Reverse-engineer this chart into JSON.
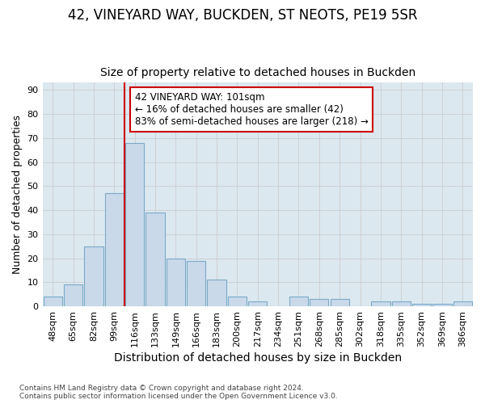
{
  "title1": "42, VINEYARD WAY, BUCKDEN, ST NEOTS, PE19 5SR",
  "title2": "Size of property relative to detached houses in Buckden",
  "xlabel": "Distribution of detached houses by size in Buckden",
  "ylabel": "Number of detached properties",
  "footnote": "Contains HM Land Registry data © Crown copyright and database right 2024.\nContains public sector information licensed under the Open Government Licence v3.0.",
  "bar_labels": [
    "48sqm",
    "65sqm",
    "82sqm",
    "99sqm",
    "116sqm",
    "133sqm",
    "149sqm",
    "166sqm",
    "183sqm",
    "200sqm",
    "217sqm",
    "234sqm",
    "251sqm",
    "268sqm",
    "285sqm",
    "302sqm",
    "318sqm",
    "335sqm",
    "352sqm",
    "369sqm",
    "386sqm"
  ],
  "bar_values": [
    4,
    9,
    25,
    47,
    68,
    39,
    20,
    19,
    11,
    4,
    2,
    0,
    4,
    3,
    3,
    0,
    2,
    2,
    1,
    1,
    2
  ],
  "bar_color": "#c9d9ea",
  "bar_edge_color": "#7aaac8",
  "vline_x": 3.5,
  "vline_color": "#cc0000",
  "annotation_text": "42 VINEYARD WAY: 101sqm\n← 16% of detached houses are smaller (42)\n83% of semi-detached houses are larger (218) →",
  "annotation_box_color": "#ffffff",
  "annotation_box_edge": "#cc0000",
  "ylim": [
    0,
    93
  ],
  "yticks": [
    0,
    10,
    20,
    30,
    40,
    50,
    60,
    70,
    80,
    90
  ],
  "grid_color": "#cccccc",
  "plot_bg_color": "#dce8f0",
  "fig_bg_color": "#ffffff",
  "title1_fontsize": 12,
  "title2_fontsize": 10,
  "xlabel_fontsize": 10,
  "ylabel_fontsize": 9,
  "tick_fontsize": 8,
  "annotation_fontsize": 8.5
}
